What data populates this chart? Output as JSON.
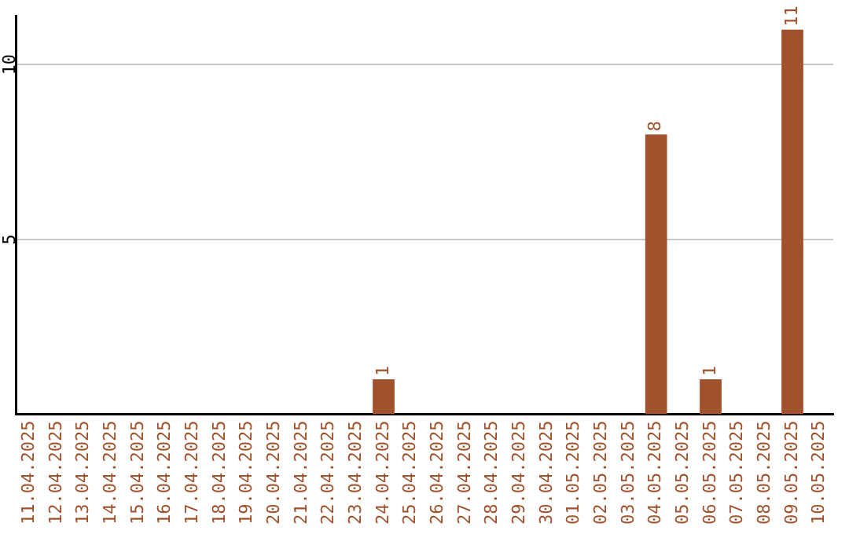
{
  "chart_data": {
    "type": "bar",
    "categories": [
      "11.04.2025",
      "12.04.2025",
      "13.04.2025",
      "14.04.2025",
      "15.04.2025",
      "16.04.2025",
      "17.04.2025",
      "18.04.2025",
      "19.04.2025",
      "20.04.2025",
      "21.04.2025",
      "22.04.2025",
      "23.04.2025",
      "24.04.2025",
      "25.04.2025",
      "26.04.2025",
      "27.04.2025",
      "28.04.2025",
      "29.04.2025",
      "30.04.2025",
      "01.05.2025",
      "02.05.2025",
      "03.05.2025",
      "04.05.2025",
      "05.05.2025",
      "06.05.2025",
      "07.05.2025",
      "08.05.2025",
      "09.05.2025",
      "10.05.2025"
    ],
    "values": [
      0,
      0,
      0,
      0,
      0,
      0,
      0,
      0,
      0,
      0,
      0,
      0,
      0,
      1,
      0,
      0,
      0,
      0,
      0,
      0,
      0,
      0,
      0,
      8,
      0,
      1,
      0,
      0,
      11,
      0
    ],
    "value_labels": [
      null,
      null,
      null,
      null,
      null,
      null,
      null,
      null,
      null,
      null,
      null,
      null,
      null,
      "1",
      null,
      null,
      null,
      null,
      null,
      null,
      null,
      null,
      null,
      "8",
      null,
      "1",
      null,
      null,
      "11",
      null
    ],
    "color": "#a0522d",
    "ylim": [
      0,
      11.4
    ],
    "yticks": [
      5,
      10
    ],
    "grid": "y",
    "legend": false
  }
}
